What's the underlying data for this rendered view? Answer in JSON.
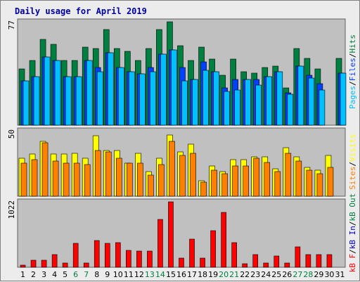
{
  "title": "Daily usage for April 2019",
  "colors": {
    "hits": "#008040",
    "files": "#0040ff",
    "pages": "#00c0ff",
    "visits": "#ffff00",
    "sites": "#ff8000",
    "kbin": "#0000c0",
    "kbout": "#008040",
    "kbf": "#ff0000",
    "weekend": "#008040",
    "weekday": "#000000",
    "panel": "#c0c0c0"
  },
  "side_labels": {
    "top": [
      {
        "text": "Pages",
        "color": "#00c0ff"
      },
      {
        "text": "/",
        "color": "#000000"
      },
      {
        "text": "Files",
        "color": "#0040ff"
      },
      {
        "text": "/",
        "color": "#000000"
      },
      {
        "text": "Hits",
        "color": "#008040"
      }
    ],
    "mid": [
      {
        "text": "Sites",
        "color": "#ff8000"
      },
      {
        "text": "/",
        "color": "#000000"
      },
      {
        "text": "Visits",
        "color": "#ffff00"
      }
    ],
    "bot": [
      {
        "text": "kB F",
        "color": "#ff0000"
      },
      {
        "text": "/",
        "color": "#000000"
      },
      {
        "text": "kB In",
        "color": "#0000c0"
      },
      {
        "text": "/",
        "color": "#000000"
      },
      {
        "text": "kB Out",
        "color": "#008040"
      }
    ]
  },
  "chart_data": {
    "type": "bar",
    "title": "Daily usage for April 2019",
    "categories": [
      "1",
      "2",
      "3",
      "4",
      "5",
      "6",
      "7",
      "8",
      "9",
      "10",
      "11",
      "12",
      "13",
      "14",
      "15",
      "16",
      "17",
      "18",
      "19",
      "20",
      "21",
      "22",
      "23",
      "24",
      "25",
      "26",
      "27",
      "28",
      "29",
      "30",
      "31"
    ],
    "weekend_days": [
      6,
      7,
      13,
      14,
      20,
      21,
      27,
      28
    ],
    "panels": [
      {
        "name": "hits-files-pages",
        "max_label": "77",
        "ymax": 77,
        "series": [
          {
            "name": "Hits",
            "values": [
              42,
              48,
              64,
              60,
              48,
              48,
              58,
              57,
              71,
              57,
              55,
              48,
              57,
              71,
              77,
              59,
              48,
              58,
              49,
              37,
              49,
              40,
              39,
              43,
              44,
              28,
              57,
              50,
              42,
              0,
              50
            ]
          },
          {
            "name": "Files",
            "values": [
              33,
              36,
              51,
              48,
              36,
              36,
              48,
              43,
              54,
              43,
              40,
              38,
              43,
              53,
              56,
              43,
              34,
              47,
              40,
              28,
              34,
              34,
              34,
              36,
              40,
              24,
              44,
              37,
              31,
              0,
              39
            ]
          },
          {
            "name": "Pages",
            "values": [
              33,
              36,
              51,
              48,
              36,
              36,
              48,
              40,
              54,
              43,
              40,
              38,
              40,
              53,
              56,
              33,
              34,
              41,
              40,
              25,
              26,
              34,
              30,
              36,
              40,
              23,
              44,
              35,
              26,
              0,
              39
            ]
          }
        ]
      },
      {
        "name": "visits-sites",
        "max_label": "50",
        "ymax": 50,
        "series": [
          {
            "name": "Visits",
            "values": [
              29,
              32,
              42,
              32,
              32,
              33,
              29,
              46,
              35,
              35,
              25,
              33,
              19,
              29,
              47,
              34,
              40,
              12,
              23,
              19,
              28,
              28,
              30,
              30,
              21,
              37,
              30,
              22,
              20,
              31,
              0
            ]
          },
          {
            "name": "Sites",
            "values": [
              25,
              28,
              41,
              27,
              25,
              25,
              24,
              35,
              34,
              29,
              25,
              25,
              16,
              24,
              42,
              31,
              33,
              11,
              20,
              17,
              23,
              23,
              29,
              26,
              19,
              33,
              27,
              20,
              17,
              22,
              0
            ]
          }
        ]
      },
      {
        "name": "kb",
        "max_label": "1022",
        "ymax": 1022,
        "series": [
          {
            "name": "kB F",
            "values": [
              36,
              110,
              112,
              200,
              65,
              374,
              62,
              413,
              370,
              385,
              265,
              255,
              250,
              745,
              1022,
              140,
              445,
              145,
              575,
              860,
              385,
              57,
              200,
              70,
              175,
              62,
              315,
              202,
              200,
              195,
              0
            ]
          }
        ]
      }
    ]
  }
}
